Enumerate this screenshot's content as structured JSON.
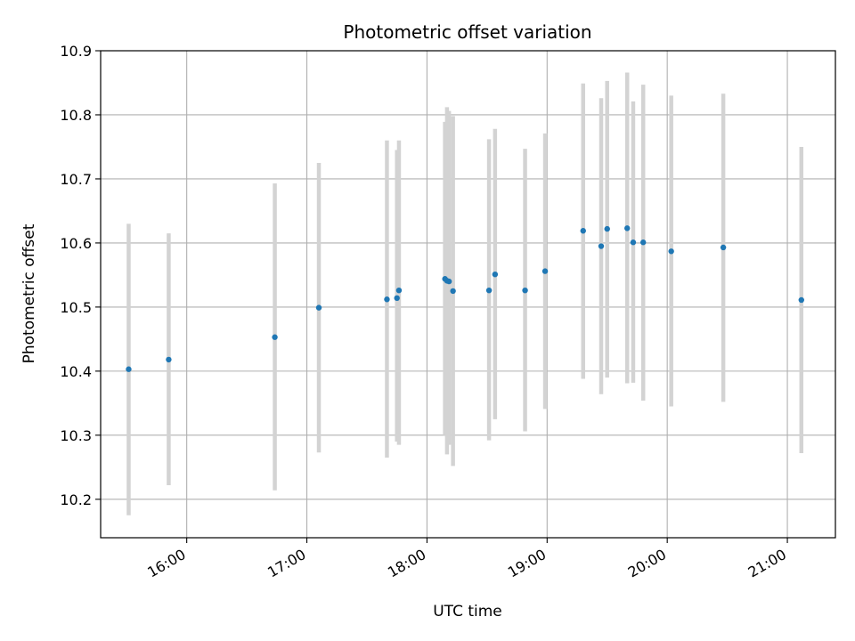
{
  "chart_data": {
    "type": "scatter",
    "title": "Photometric offset variation",
    "xlabel": "UTC time",
    "ylabel": "Photometric offset",
    "xlim": [
      "15:17",
      "21:24"
    ],
    "ylim": [
      10.14,
      10.9
    ],
    "x_ticks": [
      "16:00",
      "17:00",
      "18:00",
      "19:00",
      "20:00",
      "21:00"
    ],
    "y_ticks": [
      "10.2",
      "10.3",
      "10.4",
      "10.5",
      "10.6",
      "10.7",
      "10.8",
      "10.9"
    ],
    "grid": true,
    "colors": {
      "points": "#1f77b4",
      "error_bars": "#d3d3d3",
      "grid": "#b0b0b0"
    },
    "series": [
      {
        "points": [
          {
            "x": "15:31",
            "y": 10.403,
            "ymin": 10.175,
            "ymax": 10.63
          },
          {
            "x": "15:51",
            "y": 10.418,
            "ymin": 10.222,
            "ymax": 10.615
          },
          {
            "x": "16:44",
            "y": 10.453,
            "ymin": 10.214,
            "ymax": 10.693
          },
          {
            "x": "17:06",
            "y": 10.499,
            "ymin": 10.273,
            "ymax": 10.725
          },
          {
            "x": "17:40",
            "y": 10.512,
            "ymin": 10.265,
            "ymax": 10.76
          },
          {
            "x": "17:45",
            "y": 10.514,
            "ymin": 10.29,
            "ymax": 10.745
          },
          {
            "x": "17:46",
            "y": 10.526,
            "ymin": 10.285,
            "ymax": 10.76
          },
          {
            "x": "18:09",
            "y": 10.544,
            "ymin": 10.3,
            "ymax": 10.789
          },
          {
            "x": "18:10",
            "y": 10.541,
            "ymin": 10.27,
            "ymax": 10.812
          },
          {
            "x": "18:11",
            "y": 10.54,
            "ymin": 10.285,
            "ymax": 10.806
          },
          {
            "x": "18:13",
            "y": 10.525,
            "ymin": 10.252,
            "ymax": 10.798
          },
          {
            "x": "18:31",
            "y": 10.526,
            "ymin": 10.292,
            "ymax": 10.762
          },
          {
            "x": "18:34",
            "y": 10.551,
            "ymin": 10.325,
            "ymax": 10.778
          },
          {
            "x": "18:49",
            "y": 10.526,
            "ymin": 10.306,
            "ymax": 10.747
          },
          {
            "x": "18:59",
            "y": 10.556,
            "ymin": 10.341,
            "ymax": 10.771
          },
          {
            "x": "19:18",
            "y": 10.619,
            "ymin": 10.388,
            "ymax": 10.849
          },
          {
            "x": "19:27",
            "y": 10.595,
            "ymin": 10.364,
            "ymax": 10.826
          },
          {
            "x": "19:30",
            "y": 10.622,
            "ymin": 10.39,
            "ymax": 10.853
          },
          {
            "x": "19:40",
            "y": 10.623,
            "ymin": 10.381,
            "ymax": 10.866
          },
          {
            "x": "19:43",
            "y": 10.601,
            "ymin": 10.382,
            "ymax": 10.821
          },
          {
            "x": "19:48",
            "y": 10.601,
            "ymin": 10.354,
            "ymax": 10.847
          },
          {
            "x": "20:02",
            "y": 10.587,
            "ymin": 10.345,
            "ymax": 10.83
          },
          {
            "x": "20:28",
            "y": 10.593,
            "ymin": 10.352,
            "ymax": 10.833
          },
          {
            "x": "21:07",
            "y": 10.511,
            "ymin": 10.272,
            "ymax": 10.75
          }
        ]
      }
    ]
  }
}
